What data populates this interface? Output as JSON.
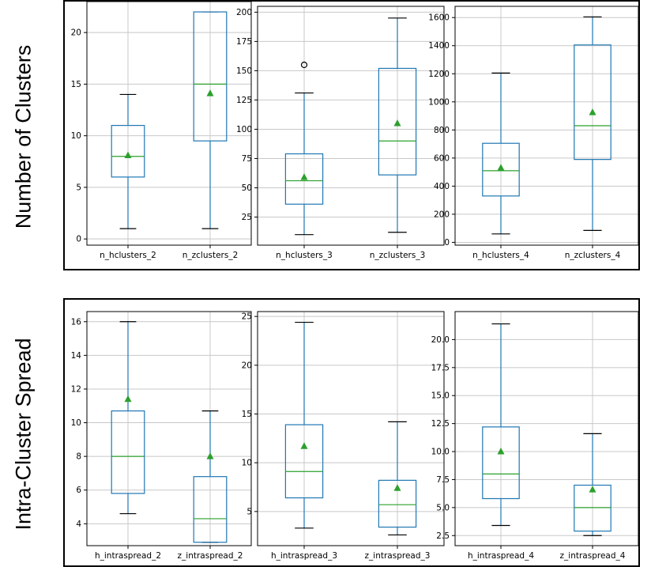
{
  "rows": [
    {
      "label": "Number of Clusters"
    },
    {
      "label": "Intra-Cluster Spread"
    }
  ],
  "chart_data": [
    {
      "type": "box",
      "title": "",
      "xlabel": "",
      "ylabel": "",
      "grid": true,
      "categories": [
        "n_hclusters_2",
        "n_zclusters_2"
      ],
      "yticks": [
        0,
        5,
        10,
        15,
        20
      ],
      "ylim": [
        -0.6,
        23
      ],
      "boxes": [
        {
          "whisker_low": 1,
          "q1": 6,
          "median": 8,
          "q3": 11,
          "whisker_high": 14,
          "mean": 8.1,
          "outliers": []
        },
        {
          "whisker_low": 1,
          "q1": 9.5,
          "median": 15,
          "q3": 22,
          "whisker_high": 22,
          "mean": 14.1,
          "outliers": []
        }
      ]
    },
    {
      "type": "box",
      "title": "",
      "xlabel": "",
      "ylabel": "",
      "grid": true,
      "categories": [
        "n_hclusters_3",
        "n_zclusters_3"
      ],
      "yticks": [
        25,
        50,
        75,
        100,
        125,
        150,
        175,
        200
      ],
      "ylim": [
        1,
        205
      ],
      "boxes": [
        {
          "whisker_low": 10,
          "q1": 36,
          "median": 56,
          "q3": 79,
          "whisker_high": 131,
          "mean": 59,
          "outliers": [
            155
          ]
        },
        {
          "whisker_low": 12,
          "q1": 61,
          "median": 90,
          "q3": 152,
          "whisker_high": 195,
          "mean": 105,
          "outliers": []
        }
      ]
    },
    {
      "type": "box",
      "title": "",
      "xlabel": "",
      "ylabel": "",
      "grid": true,
      "categories": [
        "n_hclusters_4",
        "n_zclusters_4"
      ],
      "yticks": [
        0,
        200,
        400,
        600,
        800,
        1000,
        1200,
        1400,
        1600
      ],
      "ylim": [
        -20,
        1680
      ],
      "boxes": [
        {
          "whisker_low": 60,
          "q1": 330,
          "median": 510,
          "q3": 705,
          "whisker_high": 1205,
          "mean": 530,
          "outliers": []
        },
        {
          "whisker_low": 85,
          "q1": 590,
          "median": 830,
          "q3": 1405,
          "whisker_high": 1605,
          "mean": 925,
          "outliers": []
        }
      ]
    },
    {
      "type": "box",
      "title": "",
      "xlabel": "",
      "ylabel": "",
      "grid": true,
      "categories": [
        "h_intraspread_2",
        "z_intraspread_2"
      ],
      "yticks": [
        4,
        6,
        8,
        10,
        12,
        14,
        16
      ],
      "ylim": [
        2.7,
        16.6
      ],
      "boxes": [
        {
          "whisker_low": 4.6,
          "q1": 5.8,
          "median": 8,
          "q3": 10.7,
          "whisker_high": 16,
          "mean": 11.4,
          "outliers": []
        },
        {
          "whisker_low": 2.9,
          "q1": 2.9,
          "median": 4.3,
          "q3": 6.8,
          "whisker_high": 10.7,
          "mean": 8,
          "outliers": []
        }
      ]
    },
    {
      "type": "box",
      "title": "",
      "xlabel": "",
      "ylabel": "",
      "grid": true,
      "categories": [
        "h_intraspread_3",
        "z_intraspread_3"
      ],
      "yticks": [
        5,
        10,
        15,
        20,
        25
      ],
      "ylim": [
        1.5,
        25.5
      ],
      "boxes": [
        {
          "whisker_low": 3.3,
          "q1": 6.4,
          "median": 9.1,
          "q3": 13.9,
          "whisker_high": 24.4,
          "mean": 11.7,
          "outliers": []
        },
        {
          "whisker_low": 2.6,
          "q1": 3.4,
          "median": 5.7,
          "q3": 8.2,
          "whisker_high": 14.2,
          "mean": 7.4,
          "outliers": []
        }
      ]
    },
    {
      "type": "box",
      "title": "",
      "xlabel": "",
      "ylabel": "",
      "grid": true,
      "categories": [
        "h_intraspread_4",
        "z_intraspread_4"
      ],
      "yticks": [
        2.5,
        5.0,
        7.5,
        10.0,
        12.5,
        15.0,
        17.5,
        20.0
      ],
      "ylim": [
        1.6,
        22.5
      ],
      "boxes": [
        {
          "whisker_low": 3.4,
          "q1": 5.8,
          "median": 8,
          "q3": 12.2,
          "whisker_high": 21.4,
          "mean": 10,
          "outliers": []
        },
        {
          "whisker_low": 2.5,
          "q1": 2.9,
          "median": 5,
          "q3": 7,
          "whisker_high": 11.6,
          "mean": 6.6,
          "outliers": []
        }
      ]
    }
  ]
}
